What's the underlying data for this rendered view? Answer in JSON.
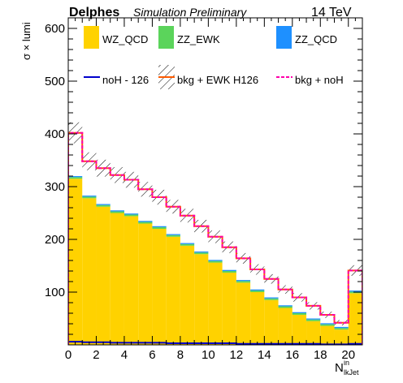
{
  "header": {
    "brand": "Delphes",
    "subtitle": "Simulation Preliminary",
    "energy": "14 TeV"
  },
  "colors": {
    "wz_qcd": "#ffd200",
    "zz_ewk": "#5bd45b",
    "zz_qcd": "#1e90ff",
    "noh": "#0000cc",
    "bkg_ewk": "#ff5a00",
    "bkg_noh": "#ff00aa"
  },
  "chart_data": {
    "type": "histogram",
    "ylabel": "σ × lumi",
    "xlabel_main": "N",
    "xlabel_sub": "lkJet",
    "xlabel_sup": "in",
    "xlim": [
      0,
      21
    ],
    "ylim": [
      0,
      620
    ],
    "x_ticks": [
      0,
      2,
      4,
      6,
      8,
      10,
      12,
      14,
      16,
      18,
      20
    ],
    "y_ticks": [
      100,
      200,
      300,
      400,
      500,
      600
    ],
    "bin_edges": [
      0,
      1,
      2,
      3,
      4,
      5,
      6,
      7,
      8,
      9,
      10,
      11,
      12,
      13,
      14,
      15,
      16,
      17,
      18,
      19,
      20,
      21
    ],
    "legend": [
      {
        "key": "wz_qcd",
        "label": "WZ_QCD",
        "style": "fill"
      },
      {
        "key": "zz_ewk",
        "label": "ZZ_EWK",
        "style": "fill"
      },
      {
        "key": "zz_qcd",
        "label": "ZZ_QCD",
        "style": "fill"
      },
      {
        "key": "noh",
        "label": "noH - 126",
        "style": "line"
      },
      {
        "key": "bkg_ewk",
        "label": "bkg + EWK H126",
        "style": "line-hatch"
      },
      {
        "key": "bkg_noh",
        "label": "bkg + noH",
        "style": "dashed"
      }
    ],
    "series": [
      {
        "key": "wz_qcd",
        "values": [
          315,
          278,
          262,
          250,
          244,
          230,
          220,
          205,
          188,
          172,
          156,
          137,
          118,
          100,
          85,
          70,
          57,
          45,
          36,
          29,
          98
        ]
      },
      {
        "key": "zz_ewk",
        "values": [
          3,
          3,
          3,
          3,
          3,
          3,
          3,
          3,
          3,
          3,
          3,
          3,
          3,
          3,
          3,
          3,
          3,
          3,
          3,
          3,
          3
        ]
      },
      {
        "key": "zz_qcd",
        "values": [
          2,
          2,
          2,
          2,
          2,
          2,
          2,
          2,
          2,
          2,
          2,
          2,
          2,
          2,
          2,
          2,
          2,
          2,
          2,
          2,
          2
        ]
      },
      {
        "key": "noh",
        "values": [
          6,
          5,
          5,
          4,
          4,
          4,
          4,
          3,
          3,
          3,
          3,
          3,
          2,
          2,
          2,
          2,
          2,
          2,
          1,
          1,
          2
        ]
      },
      {
        "key": "bkg_ewk",
        "values": [
          402,
          348,
          335,
          322,
          313,
          295,
          280,
          262,
          245,
          225,
          205,
          185,
          164,
          143,
          125,
          105,
          90,
          74,
          57,
          42,
          141
        ]
      },
      {
        "key": "bkg_noh",
        "values": [
          402,
          348,
          335,
          322,
          313,
          295,
          280,
          262,
          245,
          225,
          205,
          185,
          164,
          143,
          125,
          105,
          90,
          74,
          57,
          42,
          141
        ]
      }
    ],
    "uncertainty_band": {
      "series": "bkg_ewk",
      "half_width": [
        20,
        17,
        16,
        15,
        15,
        14,
        14,
        13,
        13,
        12,
        12,
        11,
        10,
        10,
        9,
        8,
        8,
        7,
        6,
        5,
        10
      ]
    }
  }
}
